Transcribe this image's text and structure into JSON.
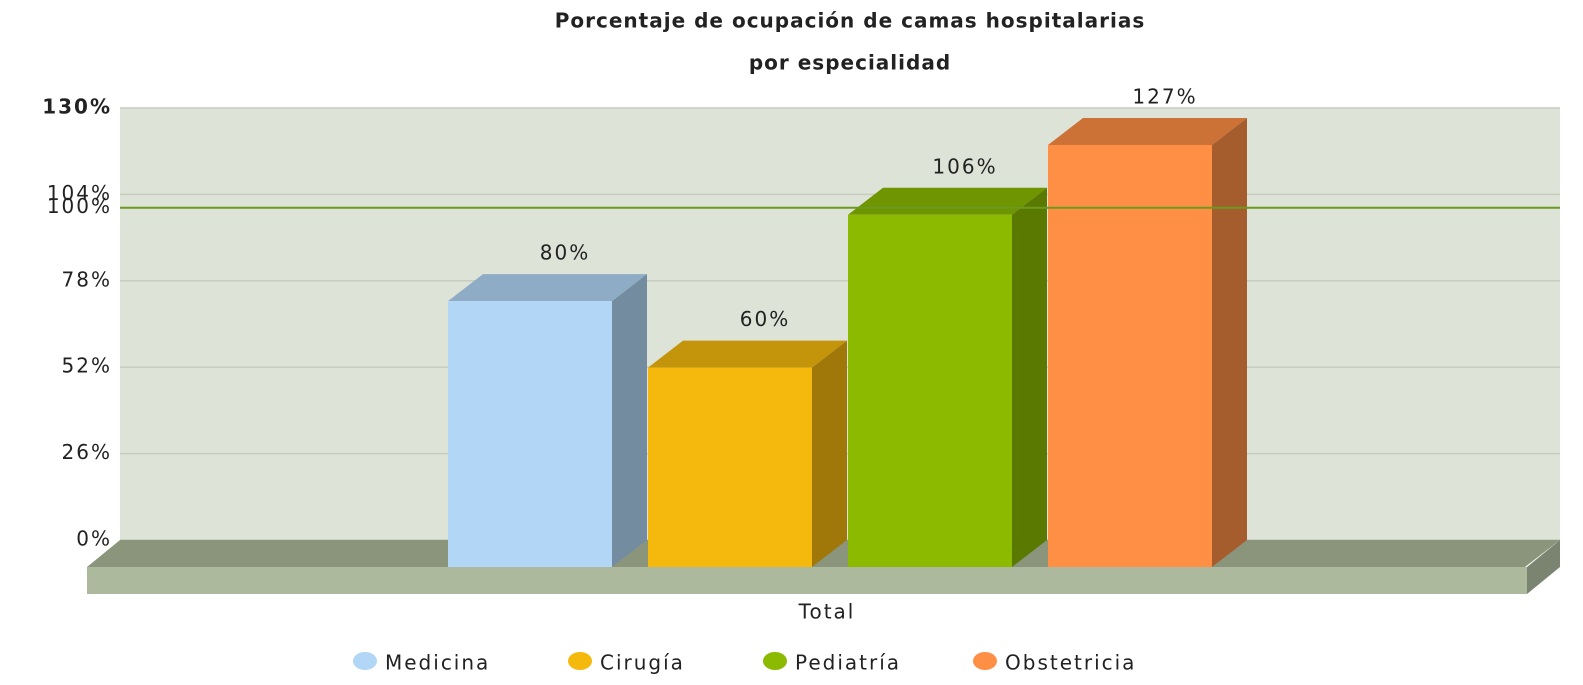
{
  "chart_data": {
    "type": "bar3d",
    "title": [
      "Porcentaje de ocupación de camas hospitalarias",
      "por especialidad"
    ],
    "categories": [
      "Total"
    ],
    "series": [
      {
        "name": "Medicina",
        "color": "#b2d7f6",
        "values": [
          80
        ],
        "value_labels": [
          "80%"
        ]
      },
      {
        "name": "Cirugía",
        "color": "#f5b90e",
        "values": [
          60
        ],
        "value_labels": [
          "60%"
        ]
      },
      {
        "name": "Pediatría",
        "color": "#8bba00",
        "values": [
          106
        ],
        "value_labels": [
          "106%"
        ]
      },
      {
        "name": "Obstetricia",
        "color": "#ff8f45",
        "values": [
          127
        ],
        "value_labels": [
          "127%"
        ]
      }
    ],
    "ylim": [
      0,
      130
    ],
    "yticks": [
      {
        "value": 0,
        "label": "0%"
      },
      {
        "value": 26,
        "label": "26%"
      },
      {
        "value": 52,
        "label": "52%"
      },
      {
        "value": 78,
        "label": "78%"
      },
      {
        "value": 104,
        "label": "104%"
      },
      {
        "value": 130,
        "label": "130%"
      }
    ],
    "trendline": {
      "value": 100,
      "label": "100%",
      "color": "#6a9a1f"
    },
    "grid": true
  }
}
